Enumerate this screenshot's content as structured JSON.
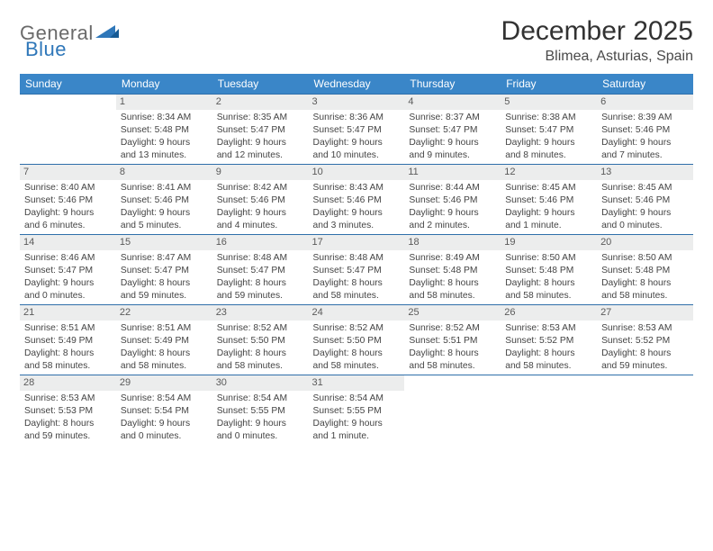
{
  "logo": {
    "word1": "General",
    "word2": "Blue"
  },
  "title": "December 2025",
  "location": "Blimea, Asturias, Spain",
  "colors": {
    "header_bg": "#3a86c8",
    "header_text": "#ffffff",
    "row_border": "#2f6faa",
    "daynum_bg": "#eceded",
    "logo_gray": "#6a6a6a",
    "logo_blue": "#2f77b9"
  },
  "day_headers": [
    "Sunday",
    "Monday",
    "Tuesday",
    "Wednesday",
    "Thursday",
    "Friday",
    "Saturday"
  ],
  "weeks": [
    [
      {
        "n": "",
        "lines": []
      },
      {
        "n": "1",
        "lines": [
          "Sunrise: 8:34 AM",
          "Sunset: 5:48 PM",
          "Daylight: 9 hours and 13 minutes."
        ]
      },
      {
        "n": "2",
        "lines": [
          "Sunrise: 8:35 AM",
          "Sunset: 5:47 PM",
          "Daylight: 9 hours and 12 minutes."
        ]
      },
      {
        "n": "3",
        "lines": [
          "Sunrise: 8:36 AM",
          "Sunset: 5:47 PM",
          "Daylight: 9 hours and 10 minutes."
        ]
      },
      {
        "n": "4",
        "lines": [
          "Sunrise: 8:37 AM",
          "Sunset: 5:47 PM",
          "Daylight: 9 hours and 9 minutes."
        ]
      },
      {
        "n": "5",
        "lines": [
          "Sunrise: 8:38 AM",
          "Sunset: 5:47 PM",
          "Daylight: 9 hours and 8 minutes."
        ]
      },
      {
        "n": "6",
        "lines": [
          "Sunrise: 8:39 AM",
          "Sunset: 5:46 PM",
          "Daylight: 9 hours and 7 minutes."
        ]
      }
    ],
    [
      {
        "n": "7",
        "lines": [
          "Sunrise: 8:40 AM",
          "Sunset: 5:46 PM",
          "Daylight: 9 hours and 6 minutes."
        ]
      },
      {
        "n": "8",
        "lines": [
          "Sunrise: 8:41 AM",
          "Sunset: 5:46 PM",
          "Daylight: 9 hours and 5 minutes."
        ]
      },
      {
        "n": "9",
        "lines": [
          "Sunrise: 8:42 AM",
          "Sunset: 5:46 PM",
          "Daylight: 9 hours and 4 minutes."
        ]
      },
      {
        "n": "10",
        "lines": [
          "Sunrise: 8:43 AM",
          "Sunset: 5:46 PM",
          "Daylight: 9 hours and 3 minutes."
        ]
      },
      {
        "n": "11",
        "lines": [
          "Sunrise: 8:44 AM",
          "Sunset: 5:46 PM",
          "Daylight: 9 hours and 2 minutes."
        ]
      },
      {
        "n": "12",
        "lines": [
          "Sunrise: 8:45 AM",
          "Sunset: 5:46 PM",
          "Daylight: 9 hours and 1 minute."
        ]
      },
      {
        "n": "13",
        "lines": [
          "Sunrise: 8:45 AM",
          "Sunset: 5:46 PM",
          "Daylight: 9 hours and 0 minutes."
        ]
      }
    ],
    [
      {
        "n": "14",
        "lines": [
          "Sunrise: 8:46 AM",
          "Sunset: 5:47 PM",
          "Daylight: 9 hours and 0 minutes."
        ]
      },
      {
        "n": "15",
        "lines": [
          "Sunrise: 8:47 AM",
          "Sunset: 5:47 PM",
          "Daylight: 8 hours and 59 minutes."
        ]
      },
      {
        "n": "16",
        "lines": [
          "Sunrise: 8:48 AM",
          "Sunset: 5:47 PM",
          "Daylight: 8 hours and 59 minutes."
        ]
      },
      {
        "n": "17",
        "lines": [
          "Sunrise: 8:48 AM",
          "Sunset: 5:47 PM",
          "Daylight: 8 hours and 58 minutes."
        ]
      },
      {
        "n": "18",
        "lines": [
          "Sunrise: 8:49 AM",
          "Sunset: 5:48 PM",
          "Daylight: 8 hours and 58 minutes."
        ]
      },
      {
        "n": "19",
        "lines": [
          "Sunrise: 8:50 AM",
          "Sunset: 5:48 PM",
          "Daylight: 8 hours and 58 minutes."
        ]
      },
      {
        "n": "20",
        "lines": [
          "Sunrise: 8:50 AM",
          "Sunset: 5:48 PM",
          "Daylight: 8 hours and 58 minutes."
        ]
      }
    ],
    [
      {
        "n": "21",
        "lines": [
          "Sunrise: 8:51 AM",
          "Sunset: 5:49 PM",
          "Daylight: 8 hours and 58 minutes."
        ]
      },
      {
        "n": "22",
        "lines": [
          "Sunrise: 8:51 AM",
          "Sunset: 5:49 PM",
          "Daylight: 8 hours and 58 minutes."
        ]
      },
      {
        "n": "23",
        "lines": [
          "Sunrise: 8:52 AM",
          "Sunset: 5:50 PM",
          "Daylight: 8 hours and 58 minutes."
        ]
      },
      {
        "n": "24",
        "lines": [
          "Sunrise: 8:52 AM",
          "Sunset: 5:50 PM",
          "Daylight: 8 hours and 58 minutes."
        ]
      },
      {
        "n": "25",
        "lines": [
          "Sunrise: 8:52 AM",
          "Sunset: 5:51 PM",
          "Daylight: 8 hours and 58 minutes."
        ]
      },
      {
        "n": "26",
        "lines": [
          "Sunrise: 8:53 AM",
          "Sunset: 5:52 PM",
          "Daylight: 8 hours and 58 minutes."
        ]
      },
      {
        "n": "27",
        "lines": [
          "Sunrise: 8:53 AM",
          "Sunset: 5:52 PM",
          "Daylight: 8 hours and 59 minutes."
        ]
      }
    ],
    [
      {
        "n": "28",
        "lines": [
          "Sunrise: 8:53 AM",
          "Sunset: 5:53 PM",
          "Daylight: 8 hours and 59 minutes."
        ]
      },
      {
        "n": "29",
        "lines": [
          "Sunrise: 8:54 AM",
          "Sunset: 5:54 PM",
          "Daylight: 9 hours and 0 minutes."
        ]
      },
      {
        "n": "30",
        "lines": [
          "Sunrise: 8:54 AM",
          "Sunset: 5:55 PM",
          "Daylight: 9 hours and 0 minutes."
        ]
      },
      {
        "n": "31",
        "lines": [
          "Sunrise: 8:54 AM",
          "Sunset: 5:55 PM",
          "Daylight: 9 hours and 1 minute."
        ]
      },
      {
        "n": "",
        "lines": []
      },
      {
        "n": "",
        "lines": []
      },
      {
        "n": "",
        "lines": []
      }
    ]
  ]
}
